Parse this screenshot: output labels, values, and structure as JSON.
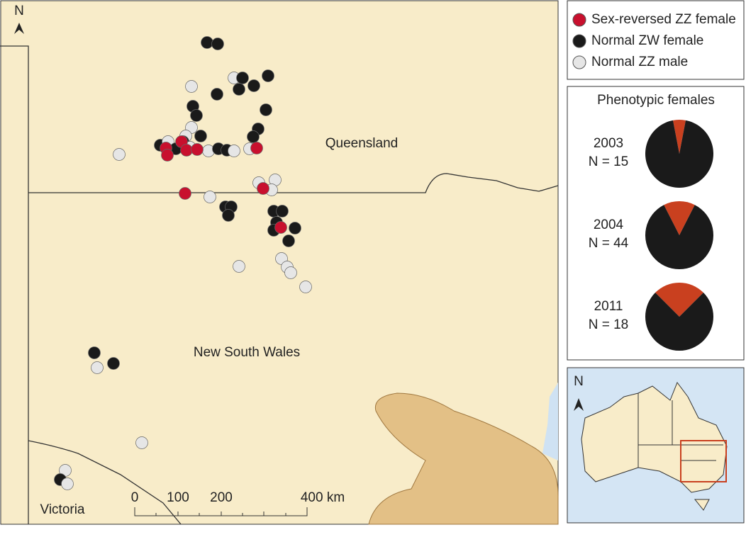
{
  "map": {
    "north": "N",
    "regions": [
      "Queensland",
      "New South Wales",
      "Victoria"
    ],
    "scale": {
      "ticks": [
        "0",
        "100",
        "200",
        "400 km"
      ]
    }
  },
  "legend": {
    "items": [
      {
        "name": "Sex-reversed ZZ female",
        "color": "#c8102e"
      },
      {
        "name": "Normal ZW female",
        "color": "#1a1a1a"
      },
      {
        "name": "Normal ZZ male",
        "color": "#e6e6e6"
      }
    ]
  },
  "chart_data": {
    "type": "pie",
    "title": "Phenotypic females",
    "colors": [
      "#c9401f",
      "#1a1a1a"
    ],
    "pies": [
      {
        "year": "2003",
        "n": "N = 15",
        "values": [
          6,
          94
        ]
      },
      {
        "year": "2004",
        "n": "N = 44",
        "values": [
          15,
          85
        ]
      },
      {
        "year": "2011",
        "n": "N = 18",
        "values": [
          25,
          75
        ]
      }
    ]
  },
  "inset": {
    "north": "N"
  }
}
